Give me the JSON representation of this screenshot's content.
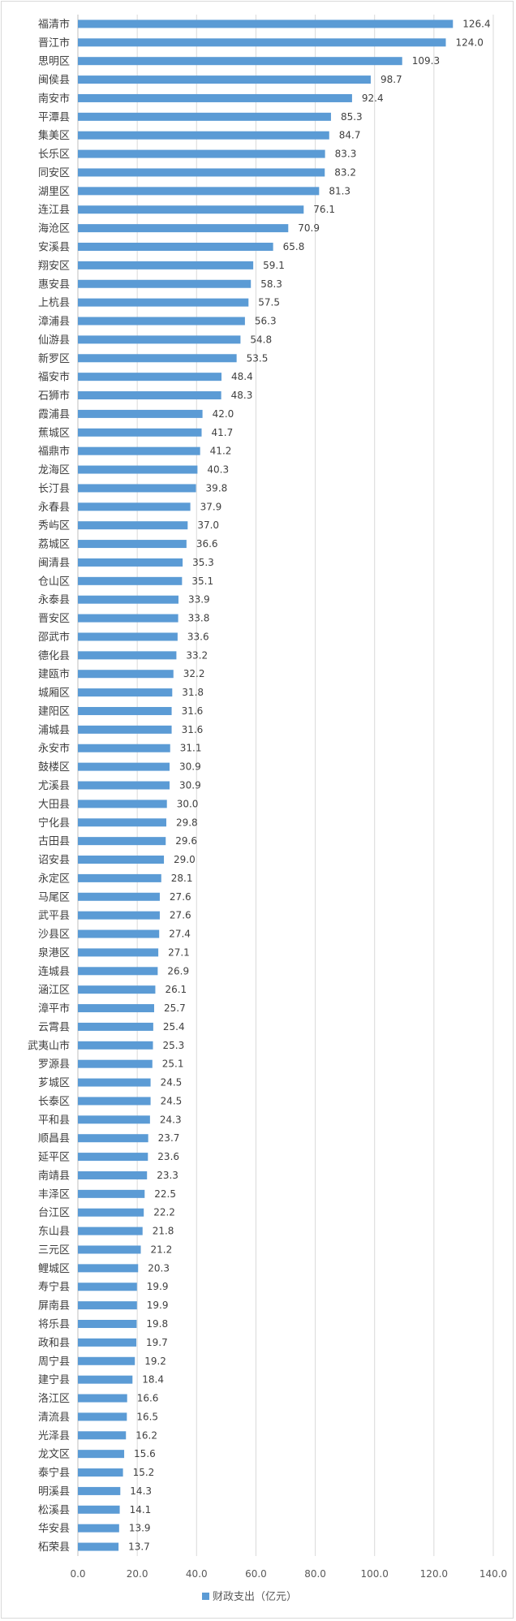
{
  "chart_data": {
    "type": "bar",
    "orientation": "horizontal",
    "categories": [
      "福清市",
      "晋江市",
      "思明区",
      "闽侯县",
      "南安市",
      "平潭县",
      "集美区",
      "长乐区",
      "同安区",
      "湖里区",
      "连江县",
      "海沧区",
      "安溪县",
      "翔安区",
      "惠安县",
      "上杭县",
      "漳浦县",
      "仙游县",
      "新罗区",
      "福安市",
      "石狮市",
      "霞浦县",
      "蕉城区",
      "福鼎市",
      "龙海区",
      "长汀县",
      "永春县",
      "秀屿区",
      "荔城区",
      "闽清县",
      "仓山区",
      "永泰县",
      "晋安区",
      "邵武市",
      "德化县",
      "建瓯市",
      "城厢区",
      "建阳区",
      "浦城县",
      "永安市",
      "鼓楼区",
      "尤溪县",
      "大田县",
      "宁化县",
      "古田县",
      "诏安县",
      "永定区",
      "马尾区",
      "武平县",
      "沙县区",
      "泉港区",
      "连城县",
      "涵江区",
      "漳平市",
      "云霄县",
      "武夷山市",
      "罗源县",
      "芗城区",
      "长泰区",
      "平和县",
      "顺昌县",
      "延平区",
      "南靖县",
      "丰泽区",
      "台江区",
      "东山县",
      "三元区",
      "鲤城区",
      "寿宁县",
      "屏南县",
      "将乐县",
      "政和县",
      "周宁县",
      "建宁县",
      "洛江区",
      "清流县",
      "光泽县",
      "龙文区",
      "泰宁县",
      "明溪县",
      "松溪县",
      "华安县",
      "柘荣县"
    ],
    "series": [
      {
        "name": "财政支出（亿元）",
        "values": [
          126.4,
          124.0,
          109.3,
          98.7,
          92.4,
          85.3,
          84.7,
          83.3,
          83.2,
          81.3,
          76.1,
          70.9,
          65.8,
          59.1,
          58.3,
          57.5,
          56.3,
          54.8,
          53.5,
          48.4,
          48.3,
          42.0,
          41.7,
          41.2,
          40.3,
          39.8,
          37.9,
          37.0,
          36.6,
          35.3,
          35.1,
          33.9,
          33.8,
          33.6,
          33.2,
          32.2,
          31.8,
          31.6,
          31.6,
          31.1,
          30.9,
          30.9,
          30.0,
          29.8,
          29.6,
          29.0,
          28.1,
          27.6,
          27.6,
          27.4,
          27.1,
          26.9,
          26.1,
          25.7,
          25.4,
          25.3,
          25.1,
          24.5,
          24.5,
          24.3,
          23.7,
          23.6,
          23.3,
          22.5,
          22.2,
          21.8,
          21.2,
          20.3,
          19.9,
          19.9,
          19.8,
          19.7,
          19.2,
          18.4,
          16.6,
          16.5,
          16.2,
          15.6,
          15.2,
          14.3,
          14.1,
          13.9,
          13.7
        ],
        "value_labels": [
          "126.4",
          "124.0",
          "109.3",
          "98.7",
          "92.4",
          "85.3",
          "84.7",
          "83.3",
          "83.2",
          "81.3",
          "76.1",
          "70.9",
          "65.8",
          "59.1",
          "58.3",
          "57.5",
          "56.3",
          "54.8",
          "53.5",
          "48.4",
          "48.3",
          "42.0",
          "41.7",
          "41.2",
          "40.3",
          "39.8",
          "37.9",
          "37.0",
          "36.6",
          "35.3",
          "35.1",
          "33.9",
          "33.8",
          "33.6",
          "33.2",
          "32.2",
          "31.8",
          "31.6",
          "31.6",
          "31.1",
          "30.9",
          "30.9",
          "30.0",
          "29.8",
          "29.6",
          "29.0",
          "28.1",
          "27.6",
          "27.6",
          "27.4",
          "27.1",
          "26.9",
          "26.1",
          "25.7",
          "25.4",
          "25.3",
          "25.1",
          "24.5",
          "24.5",
          "24.3",
          "23.7",
          "23.6",
          "23.3",
          "22.5",
          "22.2",
          "21.8",
          "21.2",
          "20.3",
          "19.9",
          "19.9",
          "19.8",
          "19.7",
          "19.2",
          "18.4",
          "16.6",
          "16.5",
          "16.2",
          "15.6",
          "15.2",
          "14.3",
          "14.1",
          "13.9",
          "13.7"
        ]
      }
    ],
    "xlim": [
      0,
      140
    ],
    "xticks": [
      "0.0",
      "20.0",
      "40.0",
      "60.0",
      "80.0",
      "100.0",
      "120.0",
      "140.0"
    ],
    "grid": "vertical",
    "legend": "bottom-center",
    "bar_color": "#5b9bd5",
    "title": "",
    "xlabel": "",
    "ylabel": ""
  }
}
